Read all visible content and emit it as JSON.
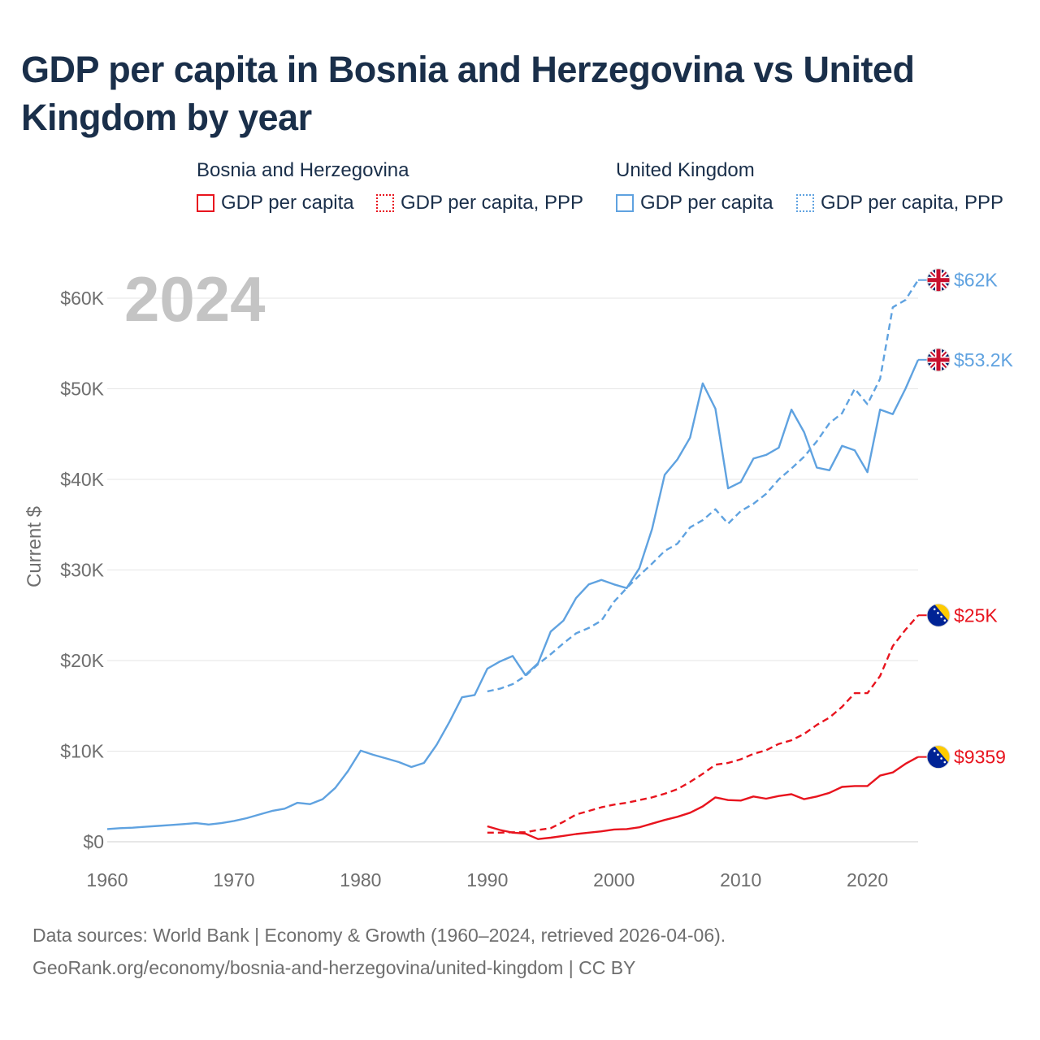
{
  "title": "GDP per capita in Bosnia and Herzegovina vs United Kingdom by year",
  "legend": {
    "groups": [
      {
        "name": "Bosnia and Herzegovina",
        "color": "#e8141e",
        "items": [
          {
            "label": "GDP per capita",
            "style": "solid"
          },
          {
            "label": "GDP per capita, PPP",
            "style": "dotted"
          }
        ]
      },
      {
        "name": "United Kingdom",
        "color": "#5fa2e0",
        "items": [
          {
            "label": "GDP per capita",
            "style": "solid"
          },
          {
            "label": "GDP per capita, PPP",
            "style": "dotted"
          }
        ]
      }
    ]
  },
  "chart_data": {
    "type": "line",
    "year_watermark": "2024",
    "ylabel": "Current $",
    "xlabel": "",
    "xlim": [
      1960,
      2024
    ],
    "ylim": [
      0,
      60000
    ],
    "x_ticks": [
      1960,
      1970,
      1980,
      1990,
      2000,
      2010,
      2020
    ],
    "x_tick_labels": [
      "1960",
      "1970",
      "1980",
      "1990",
      "2000",
      "2010",
      "2020"
    ],
    "y_ticks": [
      0,
      10000,
      20000,
      30000,
      40000,
      50000,
      60000
    ],
    "y_tick_labels": [
      "$0",
      "$10K",
      "$20K",
      "$30K",
      "$40K",
      "$50K",
      "$60K"
    ],
    "grid": true,
    "series": [
      {
        "name": "United Kingdom — GDP per capita, PPP",
        "country": "United Kingdom",
        "color": "#5fa2e0",
        "dash": "dashed",
        "end_label": "$62K",
        "flag": "uk-flag-icon",
        "start_year": 1990,
        "values": [
          16600,
          16900,
          17400,
          18300,
          19600,
          20700,
          21900,
          23000,
          23600,
          24400,
          26500,
          28000,
          29400,
          30700,
          32100,
          32900,
          34700,
          35500,
          36700,
          35100,
          36500,
          37300,
          38400,
          40000,
          41200,
          42500,
          44200,
          46200,
          47300,
          50000,
          48300,
          51100,
          59000,
          59800,
          62000
        ]
      },
      {
        "name": "United Kingdom — GDP per capita",
        "country": "United Kingdom",
        "color": "#5fa2e0",
        "dash": "solid",
        "end_label": "$53.2K",
        "flag": "uk-flag-icon",
        "start_year": 1960,
        "values": [
          1400,
          1500,
          1550,
          1650,
          1750,
          1850,
          1950,
          2050,
          1900,
          2050,
          2300,
          2600,
          3000,
          3400,
          3650,
          4300,
          4150,
          4700,
          5950,
          7800,
          10050,
          9600,
          9200,
          8800,
          8250,
          8700,
          10700,
          13200,
          15950,
          16200,
          19100,
          19900,
          20500,
          18400,
          19700,
          23200,
          24400,
          26900,
          28400,
          28900,
          28400,
          28000,
          30200,
          34500,
          40500,
          42200,
          44600,
          50600,
          47800,
          39000,
          39700,
          42300,
          42700,
          43500,
          47700,
          45200,
          41300,
          41000,
          43700,
          43200,
          40800,
          47700,
          47200,
          50000,
          53200
        ]
      },
      {
        "name": "Bosnia and Herzegovina — GDP per capita, PPP",
        "country": "Bosnia and Herzegovina",
        "color": "#e8141e",
        "dash": "dashed",
        "end_label": "$25K",
        "flag": "bosnia-flag-icon",
        "start_year": 1990,
        "values": [
          1000,
          1000,
          1050,
          1050,
          1300,
          1500,
          2200,
          3000,
          3400,
          3800,
          4100,
          4300,
          4600,
          4900,
          5300,
          5800,
          6600,
          7500,
          8500,
          8700,
          9100,
          9700,
          10100,
          10800,
          11200,
          11900,
          12900,
          13700,
          14900,
          16400,
          16400,
          18300,
          21600,
          23400,
          25000
        ]
      },
      {
        "name": "Bosnia and Herzegovina — GDP per capita",
        "country": "Bosnia and Herzegovina",
        "color": "#e8141e",
        "dash": "solid",
        "end_label": "$9359",
        "flag": "bosnia-flag-icon",
        "start_year": 1990,
        "values": [
          1700,
          1300,
          1000,
          900,
          300,
          450,
          650,
          850,
          1000,
          1150,
          1350,
          1400,
          1600,
          2000,
          2400,
          2750,
          3200,
          3900,
          4900,
          4600,
          4550,
          5000,
          4750,
          5050,
          5250,
          4700,
          5000,
          5400,
          6050,
          6150,
          6150,
          7300,
          7650,
          8600,
          9359
        ]
      }
    ]
  },
  "footer": {
    "line1": "Data sources: World Bank | Economy & Growth (1960–2024, retrieved 2026-04-06).",
    "line2": "GeoRank.org/economy/bosnia-and-herzegovina/united-kingdom | CC BY"
  }
}
